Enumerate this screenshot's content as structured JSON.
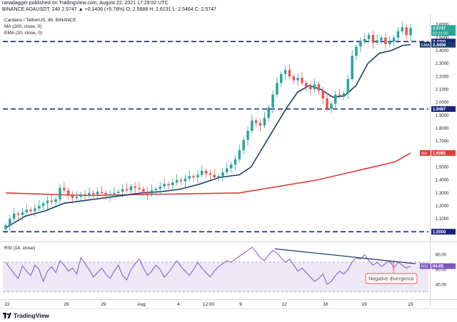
{
  "header": {
    "publish_line": "ranadagger published on TradingView.com, August 22, 2021 17:29:02 UTC",
    "symbol_line": "BINANCE:ADAUSDT, 240  2.5747 ▲ +0.1406 (+5.78%)  O: 2.5688  H: 2.6131  L: 2.5464  C: 2.5747"
  },
  "legend": {
    "title": "Cardano / TetherUS, 4h, BINANCE",
    "ma": "MA (200, close, 0)",
    "ema": "EMA (20, close, 0)",
    "rsi": "RSI (14, close)"
  },
  "branding": {
    "logo_text": "TradingView"
  },
  "annotations": {
    "negative_divergence": "Negative divergence"
  },
  "colors": {
    "candle_up": "#26a69a",
    "candle_down": "#ef5350",
    "ma200": "#e53935",
    "ema20": "#1b3a6b",
    "level_line": "#1a237e",
    "rsi_line": "#7e57c2",
    "rsi_band": "#ede7f6",
    "divergence": "#1c3f78"
  },
  "chart_data": [
    {
      "type": "line",
      "title": "Cardano / TetherUS, 4h, BINANCE",
      "price_scale_labels": [
        "2.6000",
        "2.5000",
        "2.4000",
        "2.3000",
        "2.2000",
        "2.1000",
        "2.0000",
        "1.9000",
        "1.8000",
        "1.7000",
        "1.6000",
        "1.5000",
        "1.4000",
        "1.3000",
        "1.2000",
        "1.1000",
        "1.0000"
      ],
      "x_tick_labels": [
        "22",
        "26",
        "29",
        "Aug",
        "4",
        "12:00",
        "9",
        "12",
        "16",
        "19",
        "23"
      ],
      "ylim": [
        0.93,
        2.67
      ],
      "price_tags": [
        {
          "name": "last",
          "value": 2.5747,
          "text": "2.5747",
          "sub": "02:31:00"
        },
        {
          "name": "level",
          "value": 2.47,
          "text": "2.4700"
        },
        {
          "name": "ema",
          "value": 2.4456,
          "text": "2.4456",
          "label": "EMA"
        },
        {
          "name": "level",
          "value": 1.9487,
          "text": "1.9487"
        },
        {
          "name": "ma",
          "value": 1.6085,
          "text": "1.6085",
          "label": "MA"
        },
        {
          "name": "level",
          "value": 1.0,
          "text": "1.0000"
        }
      ],
      "horizontal_levels": [
        2.47,
        1.9487,
        1.0
      ],
      "series": [
        {
          "name": "MA (200, close, 0)",
          "x": [
            0,
            20,
            40,
            60,
            80,
            100,
            104
          ],
          "values": [
            1.3,
            1.28,
            1.29,
            1.3,
            1.4,
            1.54,
            1.6085
          ]
        },
        {
          "name": "EMA (20, close, 0)",
          "x": [
            0,
            5,
            10,
            15,
            20,
            25,
            30,
            35,
            40,
            45,
            50,
            55,
            60,
            63,
            66,
            69,
            72,
            75,
            78,
            81,
            84,
            87,
            90,
            93,
            96,
            99,
            102,
            104
          ],
          "values": [
            1.03,
            1.12,
            1.16,
            1.22,
            1.24,
            1.26,
            1.28,
            1.3,
            1.31,
            1.33,
            1.37,
            1.42,
            1.44,
            1.5,
            1.65,
            1.8,
            1.95,
            2.08,
            2.13,
            2.1,
            2.04,
            2.05,
            2.13,
            2.3,
            2.38,
            2.4,
            2.44,
            2.4456
          ]
        }
      ],
      "candles_close": [
        1.05,
        1.1,
        1.14,
        1.13,
        1.15,
        1.17,
        1.16,
        1.18,
        1.2,
        1.22,
        1.24,
        1.23,
        1.25,
        1.34,
        1.32,
        1.28,
        1.26,
        1.27,
        1.29,
        1.28,
        1.3,
        1.29,
        1.31,
        1.3,
        1.28,
        1.29,
        1.3,
        1.31,
        1.33,
        1.32,
        1.35,
        1.34,
        1.33,
        1.31,
        1.29,
        1.32,
        1.33,
        1.35,
        1.37,
        1.36,
        1.38,
        1.4,
        1.39,
        1.41,
        1.43,
        1.42,
        1.44,
        1.47,
        1.45,
        1.44,
        1.42,
        1.43,
        1.46,
        1.49,
        1.52,
        1.56,
        1.63,
        1.71,
        1.78,
        1.86,
        1.84,
        1.82,
        1.88,
        1.96,
        2.06,
        2.15,
        2.22,
        2.25,
        2.2,
        2.17,
        2.19,
        2.15,
        2.12,
        2.1,
        2.14,
        2.09,
        2.03,
        1.95,
        1.99,
        2.06,
        2.05,
        2.07,
        2.18,
        2.36,
        2.43,
        2.47,
        2.49,
        2.52,
        2.46,
        2.48,
        2.5,
        2.45,
        2.47,
        2.5,
        2.55,
        2.58,
        2.52,
        2.5747
      ]
    },
    {
      "type": "line",
      "title": "RSI (14, close)",
      "price_scale_labels": [
        "80.00",
        "60.00",
        "40.00"
      ],
      "ylim": [
        22,
        95
      ],
      "band": [
        30,
        70
      ],
      "current": {
        "value": 64.65,
        "text": "64.65",
        "label": "RSI"
      },
      "divergence_trendline": {
        "x": [
          0.43,
          1.0
        ],
        "values": [
          88,
          68
        ]
      },
      "x": [
        0,
        1,
        2,
        3,
        4,
        5,
        6,
        7,
        8,
        9,
        10,
        11,
        12,
        13,
        14,
        15,
        16,
        17,
        18,
        19,
        20,
        21,
        22,
        23,
        24,
        25,
        26,
        27,
        28,
        29,
        30,
        31,
        32,
        33,
        34,
        35,
        36,
        37,
        38,
        39,
        40,
        41,
        42,
        43,
        44,
        45,
        46,
        47,
        48,
        49,
        50,
        51,
        52,
        53,
        54,
        55,
        56,
        57,
        58,
        59,
        60,
        61,
        62,
        63,
        64,
        65,
        66,
        67,
        68,
        69,
        70,
        71,
        72,
        73,
        74,
        75,
        76,
        77,
        78,
        79,
        80,
        81,
        82,
        83,
        84,
        85,
        86,
        87,
        88,
        89,
        90,
        91,
        92,
        93,
        94,
        95,
        96,
        97
      ],
      "values": [
        70,
        62,
        55,
        48,
        65,
        58,
        52,
        66,
        60,
        44,
        58,
        64,
        56,
        72,
        66,
        58,
        62,
        54,
        76,
        68,
        60,
        50,
        56,
        62,
        54,
        48,
        58,
        66,
        52,
        46,
        60,
        68,
        74,
        62,
        52,
        58,
        66,
        60,
        50,
        56,
        64,
        72,
        64,
        58,
        52,
        60,
        70,
        62,
        56,
        50,
        58,
        64,
        68,
        72,
        70,
        74,
        78,
        82,
        86,
        90,
        84,
        76,
        72,
        80,
        86,
        82,
        76,
        70,
        74,
        66,
        58,
        62,
        56,
        50,
        44,
        48,
        54,
        40,
        44,
        52,
        58,
        54,
        60,
        70,
        76,
        74,
        80,
        72,
        66,
        70,
        64,
        68,
        72,
        62,
        70,
        66,
        62,
        64.65
      ]
    }
  ]
}
